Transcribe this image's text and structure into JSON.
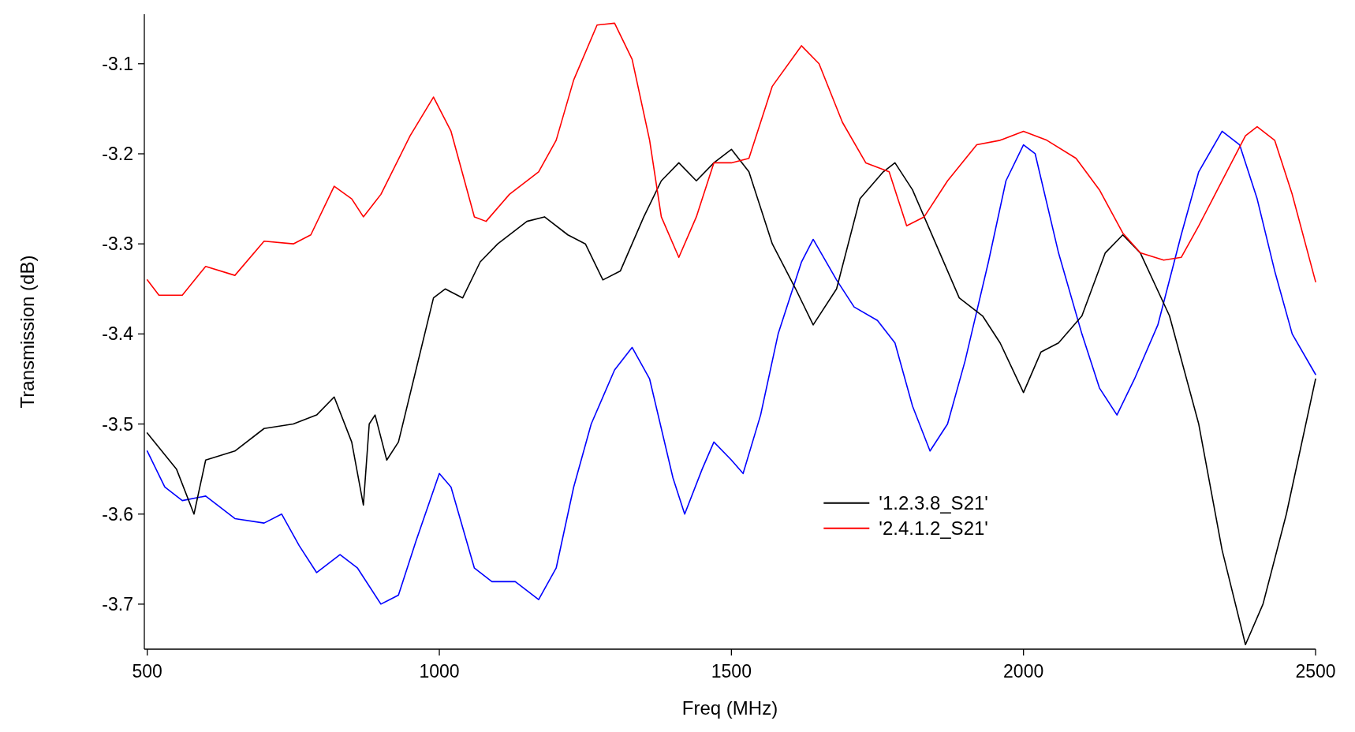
{
  "chart_data": {
    "type": "line",
    "xlabel": "Freq (MHz)",
    "ylabel": "Transmission (dB)",
    "xlim": [
      495,
      2500
    ],
    "ylim": [
      -3.75,
      -3.045
    ],
    "xticks": [
      500,
      1000,
      1500,
      2000,
      2500
    ],
    "yticks": [
      -3.7,
      -3.6,
      -3.5,
      -3.4,
      -3.3,
      -3.2,
      -3.1
    ],
    "grid": false,
    "legend": "bottom right",
    "line_style": "solid",
    "series": [
      {
        "color": "#0000ff",
        "x": [
          500,
          530,
          560,
          600,
          650,
          700,
          730,
          760,
          790,
          830,
          860,
          900,
          930,
          960,
          1000,
          1020,
          1060,
          1090,
          1130,
          1170,
          1200,
          1230,
          1260,
          1300,
          1330,
          1360,
          1400,
          1420,
          1450,
          1470,
          1500,
          1520,
          1550,
          1580,
          1620,
          1640,
          1680,
          1710,
          1750,
          1780,
          1810,
          1840,
          1870,
          1900,
          1940,
          1970,
          2000,
          2020,
          2060,
          2100,
          2130,
          2160,
          2190,
          2230,
          2270,
          2300,
          2340,
          2370,
          2400,
          2430,
          2460,
          2500
        ],
        "values": [
          -3.53,
          -3.57,
          -3.585,
          -3.58,
          -3.605,
          -3.61,
          -3.6,
          -3.635,
          -3.665,
          -3.645,
          -3.66,
          -3.7,
          -3.69,
          -3.63,
          -3.555,
          -3.57,
          -3.66,
          -3.675,
          -3.675,
          -3.695,
          -3.66,
          -3.57,
          -3.5,
          -3.44,
          -3.415,
          -3.45,
          -3.56,
          -3.6,
          -3.55,
          -3.52,
          -3.54,
          -3.555,
          -3.49,
          -3.4,
          -3.32,
          -3.295,
          -3.34,
          -3.37,
          -3.385,
          -3.41,
          -3.48,
          -3.53,
          -3.5,
          -3.43,
          -3.32,
          -3.23,
          -3.19,
          -3.2,
          -3.31,
          -3.4,
          -3.46,
          -3.49,
          -3.45,
          -3.39,
          -3.29,
          -3.22,
          -3.175,
          -3.19,
          -3.25,
          -3.33,
          -3.4,
          -3.445
        ]
      },
      {
        "name": "'1.2.3.8_S21'",
        "color": "#000000",
        "x": [
          500,
          550,
          580,
          600,
          650,
          700,
          750,
          790,
          820,
          850,
          870,
          880,
          890,
          910,
          930,
          960,
          990,
          1010,
          1040,
          1070,
          1100,
          1150,
          1180,
          1220,
          1250,
          1280,
          1310,
          1350,
          1380,
          1410,
          1440,
          1470,
          1500,
          1530,
          1570,
          1610,
          1640,
          1680,
          1720,
          1760,
          1780,
          1810,
          1850,
          1890,
          1930,
          1960,
          2000,
          2030,
          2060,
          2100,
          2140,
          2170,
          2200,
          2250,
          2300,
          2340,
          2380,
          2410,
          2450,
          2500
        ],
        "values": [
          -3.51,
          -3.55,
          -3.6,
          -3.54,
          -3.53,
          -3.505,
          -3.5,
          -3.49,
          -3.47,
          -3.52,
          -3.59,
          -3.5,
          -3.49,
          -3.54,
          -3.52,
          -3.44,
          -3.36,
          -3.35,
          -3.36,
          -3.32,
          -3.3,
          -3.275,
          -3.27,
          -3.29,
          -3.3,
          -3.34,
          -3.33,
          -3.27,
          -3.23,
          -3.21,
          -3.23,
          -3.21,
          -3.195,
          -3.22,
          -3.3,
          -3.35,
          -3.39,
          -3.35,
          -3.25,
          -3.22,
          -3.21,
          -3.24,
          -3.3,
          -3.36,
          -3.38,
          -3.41,
          -3.465,
          -3.42,
          -3.41,
          -3.38,
          -3.31,
          -3.29,
          -3.31,
          -3.38,
          -3.5,
          -3.64,
          -3.745,
          -3.7,
          -3.6,
          -3.45
        ]
      },
      {
        "name": "'2.4.1.2_S21'",
        "color": "#ff0000",
        "x": [
          500,
          520,
          560,
          600,
          650,
          700,
          750,
          780,
          820,
          850,
          870,
          900,
          950,
          990,
          1020,
          1060,
          1080,
          1120,
          1170,
          1200,
          1230,
          1270,
          1300,
          1330,
          1360,
          1380,
          1410,
          1440,
          1470,
          1500,
          1530,
          1570,
          1620,
          1650,
          1690,
          1730,
          1770,
          1800,
          1830,
          1870,
          1920,
          1960,
          2000,
          2040,
          2090,
          2130,
          2170,
          2200,
          2240,
          2270,
          2300,
          2340,
          2380,
          2400,
          2430,
          2460,
          2500
        ],
        "values": [
          -3.34,
          -3.357,
          -3.357,
          -3.325,
          -3.335,
          -3.297,
          -3.3,
          -3.29,
          -3.236,
          -3.25,
          -3.27,
          -3.245,
          -3.18,
          -3.137,
          -3.175,
          -3.27,
          -3.275,
          -3.245,
          -3.22,
          -3.185,
          -3.118,
          -3.057,
          -3.055,
          -3.095,
          -3.185,
          -3.27,
          -3.315,
          -3.27,
          -3.21,
          -3.21,
          -3.205,
          -3.125,
          -3.08,
          -3.1,
          -3.165,
          -3.21,
          -3.22,
          -3.28,
          -3.27,
          -3.23,
          -3.19,
          -3.185,
          -3.175,
          -3.185,
          -3.205,
          -3.24,
          -3.288,
          -3.31,
          -3.318,
          -3.315,
          -3.28,
          -3.23,
          -3.18,
          -3.17,
          -3.185,
          -3.245,
          -3.342
        ]
      }
    ]
  }
}
